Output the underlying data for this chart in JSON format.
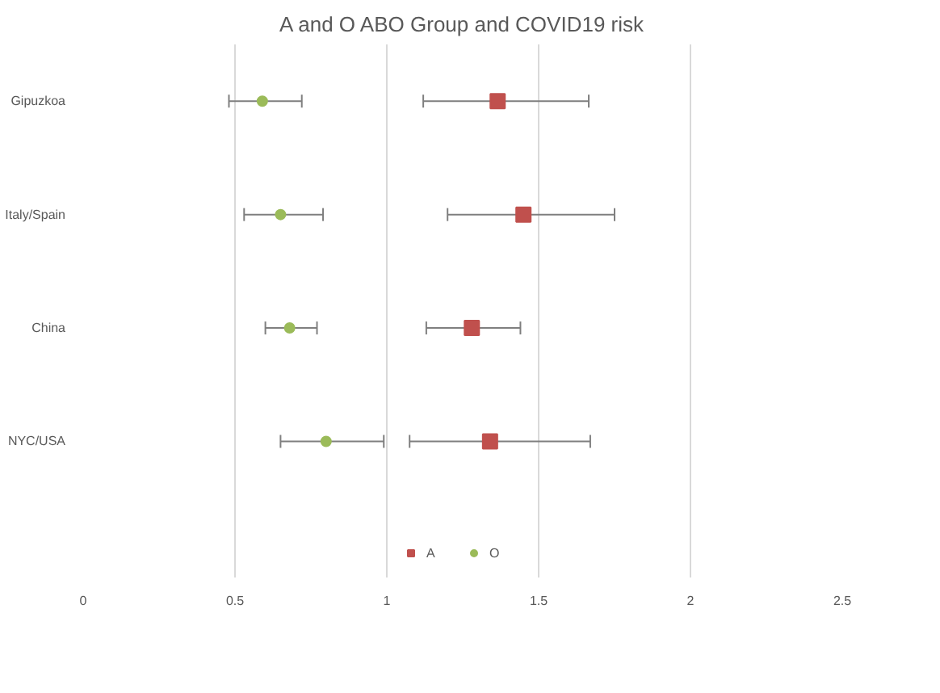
{
  "chart_data": {
    "type": "scatter",
    "orientation": "horizontal",
    "title": "A and O ABO Group and COVID19 risk",
    "categories": [
      "Gipuzkoa",
      "Italy/Spain",
      "China",
      "NYC/USA"
    ],
    "series": [
      {
        "name": "A",
        "color": "#c0504d",
        "marker": "square",
        "values": [
          1.365,
          1.45,
          1.28,
          1.34
        ],
        "errors": [
          [
            1.12,
            1.665
          ],
          [
            1.2,
            1.75
          ],
          [
            1.13,
            1.44
          ],
          [
            1.075,
            1.67
          ]
        ]
      },
      {
        "name": "O",
        "color": "#9bbb59",
        "marker": "circle",
        "values": [
          0.59,
          0.65,
          0.68,
          0.8
        ],
        "errors": [
          [
            0.48,
            0.72
          ],
          [
            0.53,
            0.79
          ],
          [
            0.6,
            0.77
          ],
          [
            0.65,
            0.99
          ]
        ]
      }
    ],
    "xlim": [
      0,
      2.5
    ],
    "xticks": [
      0,
      0.5,
      1,
      1.5,
      2,
      2.5
    ],
    "grid": "x",
    "legend": "bottom"
  }
}
